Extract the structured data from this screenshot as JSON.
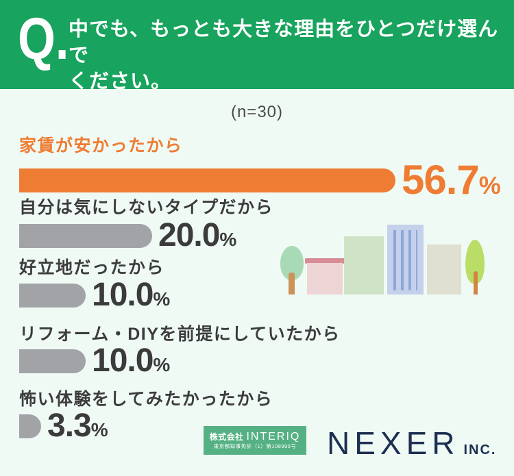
{
  "header": {
    "q_label": "Q.",
    "question_line1": "中でも、もっとも大きな理由をひとつだけ選んで",
    "question_line2": "ください。"
  },
  "chart_data": {
    "type": "bar",
    "orientation": "horizontal",
    "title": "中でも、もっとも大きな理由をひとつだけ選んでください。",
    "sample_label": "(n=30)",
    "sample_size": 30,
    "categories": [
      "家賃が安かったから",
      "自分は気にしないタイプだから",
      "好立地だったから",
      "リフォーム・DIYを前提にしていたから",
      "怖い体験をしてみたかったから"
    ],
    "values": [
      56.7,
      20.0,
      10.0,
      10.0,
      3.3
    ],
    "xlim": [
      0,
      100
    ],
    "percent_sign": "%",
    "highlight_color": "#ee7c32",
    "bar_color": "#a2a3a7",
    "rows": [
      {
        "label": "家賃が安かったから",
        "value": 56.7,
        "value_display": "56.7",
        "highlight": true
      },
      {
        "label": "自分は気にしないタイプだから",
        "value": 20.0,
        "value_display": "20.0",
        "highlight": false
      },
      {
        "label": "好立地だったから",
        "value": 10.0,
        "value_display": "10.0",
        "highlight": false
      },
      {
        "label": "リフォーム・DIYを前提にしていたから",
        "value": 10.0,
        "value_display": "10.0",
        "highlight": false
      },
      {
        "label": "怖い体験をしてみたかったから",
        "value": 3.3,
        "value_display": "3.3",
        "highlight": false
      }
    ]
  },
  "footer": {
    "interiq": {
      "company_prefix": "株式会社",
      "company_name": "INTERIQ",
      "license": "東京都知事免許（1）第108990号",
      "bg_color": "#55b183"
    },
    "nexer": {
      "name": "NEXER",
      "suffix": "INC.",
      "color": "#1c2f52"
    }
  },
  "theme": {
    "header_green": "#18a35e",
    "background": "#f0faf5"
  }
}
